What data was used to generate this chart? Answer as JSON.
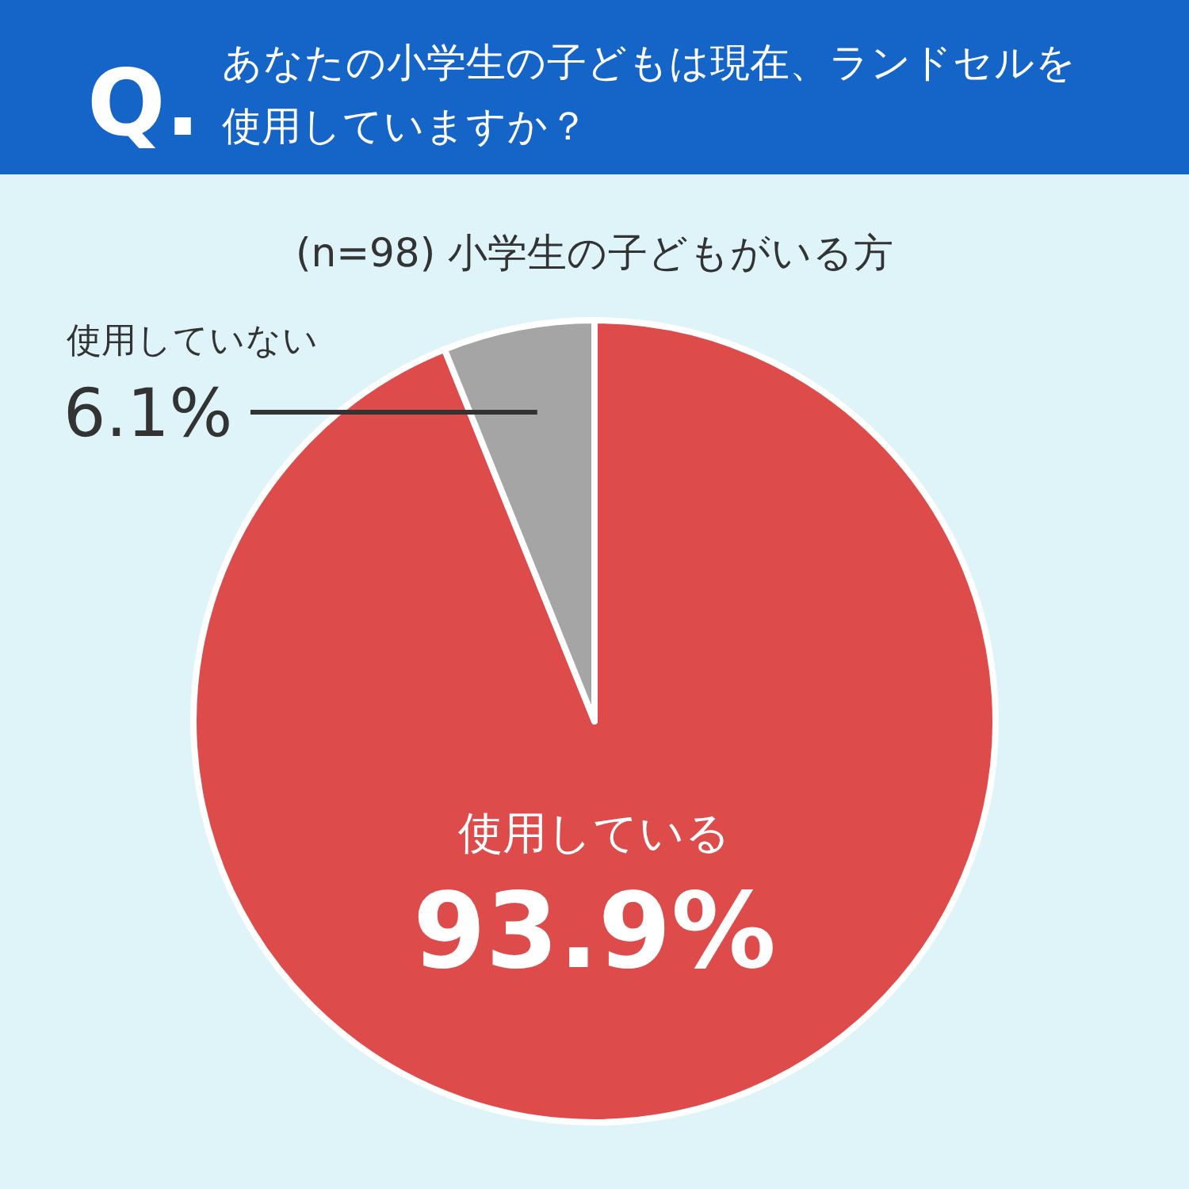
{
  "chart_data": {
    "type": "pie",
    "title": "あなたの小学生の子どもは現在、ランドセルを使用していますか？",
    "subtitle": "(n=98) 小学生の子どもがいる方",
    "annotations": [
      "Q."
    ],
    "categories": [
      "使用している",
      "使用していない"
    ],
    "values": [
      93.9,
      6.1
    ],
    "colors": [
      "#de4b4b",
      "#a5a5a5"
    ],
    "value_labels": [
      "93.9%",
      "6.1%"
    ]
  }
}
